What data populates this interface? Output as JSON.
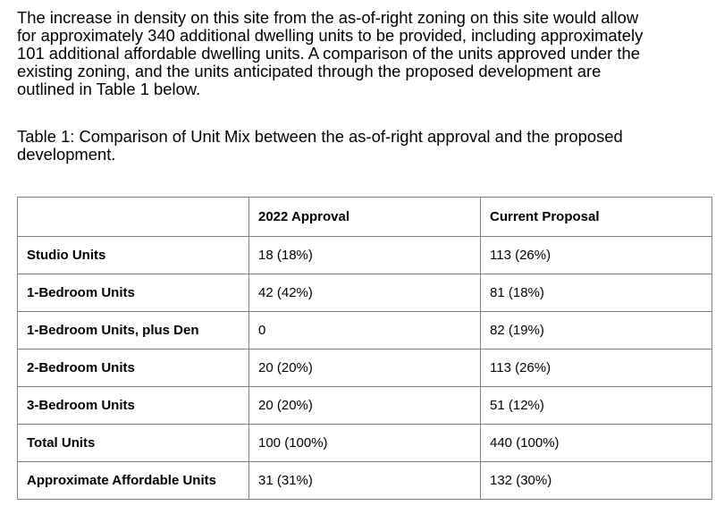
{
  "intro_lines": [
    "The increase in density on this site from the as-of-right zoning on this site would allow",
    "for approximately 340 additional dwelling units to be provided, including approximately",
    "101 additional affordable dwelling units. A comparison of the units approved under the",
    "existing zoning, and the units anticipated through the proposed development are",
    "outlined in Table 1 below."
  ],
  "caption_lines": [
    "Table 1: Comparison of Unit Mix between the as-of-right approval and the proposed",
    "development."
  ],
  "table": {
    "corner": "",
    "headers": [
      "2022 Approval",
      "Current Proposal"
    ],
    "rows": [
      {
        "label": "Studio Units",
        "approval": "18 (18%)",
        "proposal": "113 (26%)"
      },
      {
        "label": "1-Bedroom Units",
        "approval": "42 (42%)",
        "proposal": "81 (18%)"
      },
      {
        "label": "1-Bedroom Units, plus Den",
        "approval": "0",
        "proposal": "82 (19%)"
      },
      {
        "label": "2-Bedroom Units",
        "approval": "20 (20%)",
        "proposal": "113 (26%)"
      },
      {
        "label": "3-Bedroom Units",
        "approval": "20 (20%)",
        "proposal": "51 (12%)"
      },
      {
        "label": "Total Units",
        "approval": "100 (100%)",
        "proposal": "440 (100%)"
      },
      {
        "label": "Approximate Affordable Units",
        "approval": "31 (31%)",
        "proposal": "132 (30%)"
      }
    ]
  }
}
